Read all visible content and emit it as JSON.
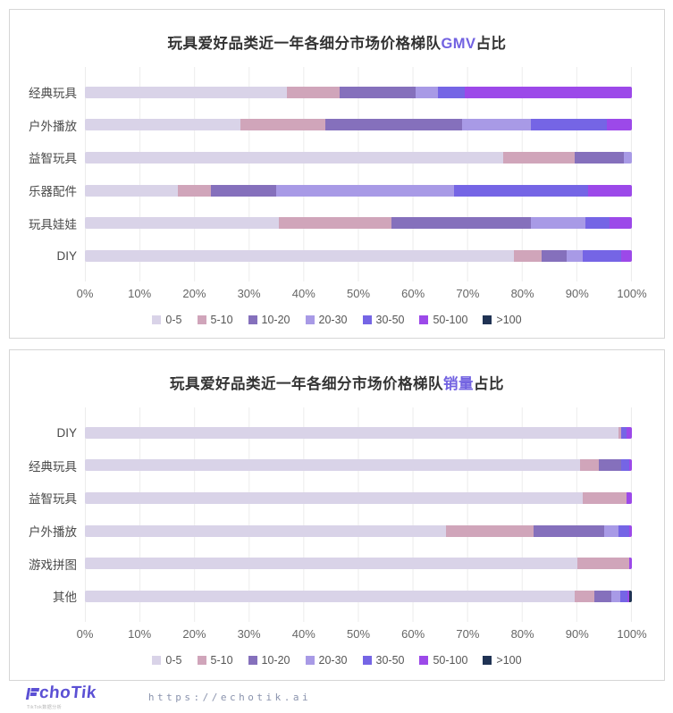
{
  "accent": {
    "title_highlight": "#7262e1",
    "title_text": "#333333",
    "tick_text": "#666666",
    "grid_line": "#ececec",
    "card_border": "#d6d6d6",
    "brand_color": "#5b50d4"
  },
  "legend": {
    "labels": [
      "0-5",
      "5-10",
      "10-20",
      "20-30",
      "30-50",
      "50-100",
      ">100"
    ],
    "colors": [
      "#d9d3e8",
      "#d0a5ba",
      "#8570bc",
      "#a89ae6",
      "#7565e5",
      "#9c49e9",
      "#203354"
    ]
  },
  "x_axis": {
    "ticks": [
      "0%",
      "10%",
      "20%",
      "30%",
      "40%",
      "50%",
      "60%",
      "70%",
      "80%",
      "90%",
      "100%"
    ]
  },
  "chart_data": [
    {
      "type": "bar",
      "orientation": "horizontal",
      "stacked": true,
      "value_unit": "%",
      "xlim": [
        0,
        100
      ],
      "grid": true,
      "legend_position": "bottom",
      "title": "玩具爱好品类近一年各细分市场价格梯队GMV占比",
      "title_parts": {
        "prefix": "玩具爱好品类近一年各细分市场价格梯队",
        "highlight": "GMV",
        "suffix": "占比"
      },
      "categories": [
        "经典玩具",
        "户外播放",
        "益智玩具",
        "乐器配件",
        "玩具娃娃",
        "DIY"
      ],
      "series": [
        {
          "name": "0-5",
          "values": [
            37,
            28.5,
            76.5,
            17,
            35.5,
            78.5
          ]
        },
        {
          "name": "5-10",
          "values": [
            9.5,
            15.5,
            13,
            6,
            20.5,
            5
          ]
        },
        {
          "name": "10-20",
          "values": [
            14,
            25,
            9,
            12,
            25.5,
            4.5
          ]
        },
        {
          "name": "20-30",
          "values": [
            4,
            12.5,
            1.5,
            32.5,
            10,
            3
          ]
        },
        {
          "name": "30-50",
          "values": [
            5,
            14,
            0,
            24.5,
            4.5,
            7
          ]
        },
        {
          "name": "50-100",
          "values": [
            30.5,
            4.5,
            0,
            8,
            4,
            2
          ]
        },
        {
          "name": ">100",
          "values": [
            0,
            0,
            0,
            0,
            0,
            0
          ]
        }
      ]
    },
    {
      "type": "bar",
      "orientation": "horizontal",
      "stacked": true,
      "value_unit": "%",
      "xlim": [
        0,
        100
      ],
      "grid": true,
      "legend_position": "bottom",
      "title": "玩具爱好品类近一年各细分市场价格梯队销量占比",
      "title_parts": {
        "prefix": "玩具爱好品类近一年各细分市场价格梯队",
        "highlight": "销量",
        "suffix": "占比"
      },
      "categories": [
        "DIY",
        "经典玩具",
        "益智玩具",
        "户外播放",
        "游戏拼图",
        "其他"
      ],
      "series": [
        {
          "name": "0-5",
          "values": [
            97.5,
            90.5,
            91,
            66,
            90,
            89.5
          ]
        },
        {
          "name": "5-10",
          "values": [
            0.5,
            3.5,
            8,
            16,
            9.5,
            3.7
          ]
        },
        {
          "name": "10-20",
          "values": [
            0,
            4,
            0,
            13,
            0,
            3
          ]
        },
        {
          "name": "20-30",
          "values": [
            0,
            0,
            0,
            2.5,
            0,
            1.7
          ]
        },
        {
          "name": "30-50",
          "values": [
            1,
            1.5,
            0,
            2,
            0,
            1.3
          ]
        },
        {
          "name": "50-100",
          "values": [
            1,
            0.5,
            1,
            0.5,
            0.5,
            0.3
          ]
        },
        {
          "name": ">100",
          "values": [
            0,
            0,
            0,
            0,
            0,
            0.5
          ]
        }
      ]
    }
  ],
  "footer": {
    "brand": "EchoTik",
    "brand_rest": "choTik",
    "tagline": "TikTok数据分析",
    "url": "https://echotik.ai"
  }
}
